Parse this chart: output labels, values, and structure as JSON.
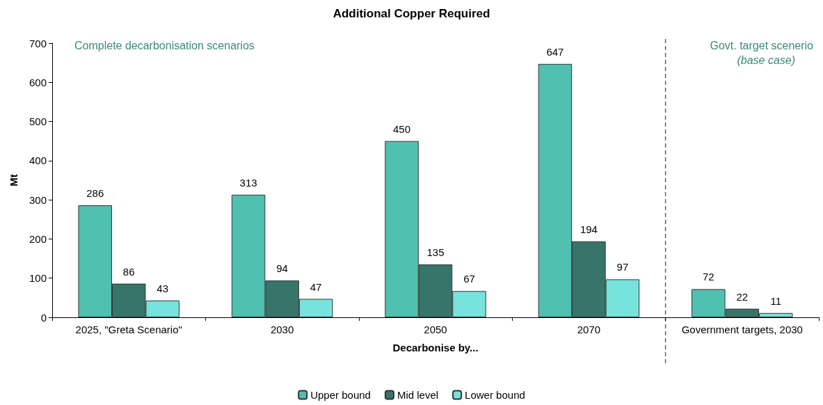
{
  "chart_data": {
    "type": "bar",
    "title": "Additional Copper Required",
    "xlabel": "Decarbonise by...",
    "ylabel": "Mt",
    "categories": [
      "2025, \"Greta Scenario\"",
      "2030",
      "2050",
      "2070",
      "Government targets, 2030"
    ],
    "series": [
      {
        "name": "Upper bound",
        "color": "#50c0b0",
        "values": [
          286,
          313,
          450,
          647,
          72
        ]
      },
      {
        "name": "Mid level",
        "color": "#37756b",
        "values": [
          86,
          94,
          135,
          194,
          22
        ]
      },
      {
        "name": "Lower bound",
        "color": "#76e3dc",
        "values": [
          43,
          47,
          67,
          97,
          11
        ]
      }
    ],
    "ylim": [
      0,
      700
    ],
    "yticks": [
      0,
      100,
      200,
      300,
      400,
      500,
      600,
      700
    ],
    "ref_lines": [
      {
        "axis": "x",
        "value": "Government targets, 2030",
        "color": "#37756b",
        "line_style": "dashed"
      }
    ],
    "data_labels": true,
    "grid": false,
    "legend": "bottom",
    "annotations": [
      "Complete decarbonisation scenarios",
      "Govt. target scenerio",
      "(base case)"
    ]
  }
}
